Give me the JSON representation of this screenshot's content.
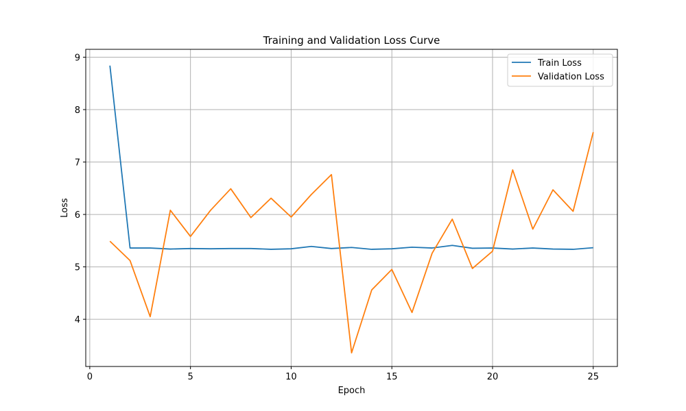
{
  "chart_data": {
    "type": "line",
    "title": "Training and Validation Loss Curve",
    "xlabel": "Epoch",
    "ylabel": "Loss",
    "xlim": [
      -0.2,
      26.2
    ],
    "ylim": [
      3.1,
      9.15
    ],
    "xticks": [
      0,
      5,
      10,
      15,
      20,
      25
    ],
    "yticks": [
      4,
      5,
      6,
      7,
      8,
      9
    ],
    "grid": true,
    "legend_position": "top-right",
    "x": [
      1,
      2,
      3,
      4,
      5,
      6,
      7,
      8,
      9,
      10,
      11,
      12,
      13,
      14,
      15,
      16,
      17,
      18,
      19,
      20,
      21,
      22,
      23,
      24,
      25
    ],
    "series": [
      {
        "name": "Train Loss",
        "color": "#1f77b4",
        "values": [
          8.84,
          5.36,
          5.36,
          5.34,
          5.35,
          5.345,
          5.35,
          5.35,
          5.335,
          5.345,
          5.39,
          5.35,
          5.37,
          5.335,
          5.345,
          5.375,
          5.36,
          5.41,
          5.355,
          5.36,
          5.34,
          5.36,
          5.34,
          5.335,
          5.365
        ]
      },
      {
        "name": "Validation Loss",
        "color": "#ff7f0e",
        "values": [
          5.49,
          5.12,
          4.05,
          6.08,
          5.58,
          6.08,
          6.49,
          5.94,
          6.31,
          5.95,
          6.38,
          6.76,
          3.36,
          4.56,
          4.95,
          4.13,
          5.26,
          5.91,
          4.97,
          5.3,
          6.85,
          5.72,
          6.47,
          6.06,
          7.57
        ]
      }
    ]
  }
}
